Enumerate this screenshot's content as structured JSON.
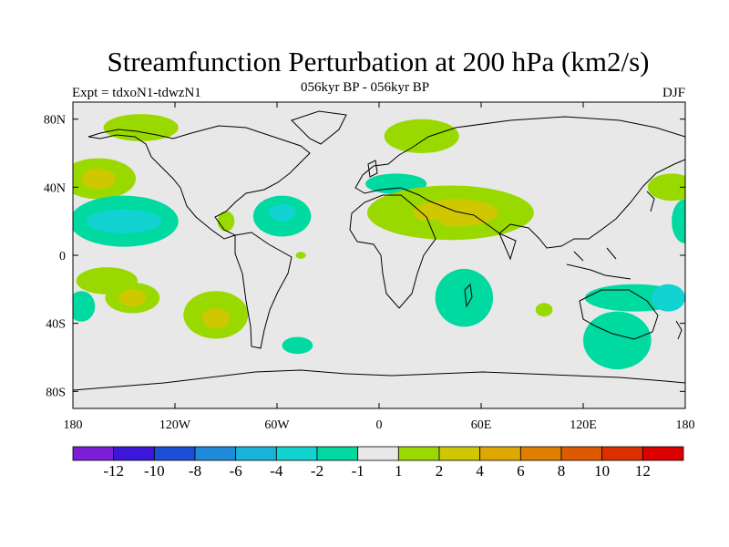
{
  "header": {
    "title": "Streamfunction Perturbation at 200 hPa (km2/s)",
    "experiment": "Expt = tdxoN1-tdwzN1",
    "period": "056kyr BP - 056kyr BP",
    "season": "DJF"
  },
  "chart_data": {
    "type": "contour_map",
    "projection": "cylindrical equidistant",
    "variable": "Streamfunction Perturbation",
    "level": "200 hPa",
    "units": "km2/s",
    "lon_range": [
      -180,
      180
    ],
    "lat_range": [
      -90,
      90
    ],
    "x_ticks": [
      {
        "value": -180,
        "label": "180"
      },
      {
        "value": -120,
        "label": "120W"
      },
      {
        "value": -60,
        "label": "60W"
      },
      {
        "value": 0,
        "label": "0"
      },
      {
        "value": 60,
        "label": "60E"
      },
      {
        "value": 120,
        "label": "120E"
      },
      {
        "value": 180,
        "label": "180"
      }
    ],
    "y_ticks": [
      {
        "value": 80,
        "label": "80N"
      },
      {
        "value": 40,
        "label": "40N"
      },
      {
        "value": 0,
        "label": "0"
      },
      {
        "value": -40,
        "label": "40S"
      },
      {
        "value": -80,
        "label": "80S"
      }
    ],
    "colorbar": {
      "colors": [
        "#7d1fd9",
        "#3d17d9",
        "#1a4fd6",
        "#1e8ad8",
        "#18b4d8",
        "#12d2d2",
        "#00d9a0",
        "#e8e8e8",
        "#9ad900",
        "#cfc800",
        "#dfa800",
        "#e07e00",
        "#dd5a00",
        "#dc3000",
        "#dd0000"
      ],
      "labels": [
        "-12",
        "-10",
        "-8",
        "-6",
        "-4",
        "-2",
        "-1",
        "1",
        "2",
        "4",
        "6",
        "8",
        "10",
        "12"
      ]
    },
    "anomalies": [
      {
        "lon": -140,
        "lat": 75,
        "rx": 22,
        "ry": 8,
        "level": 2
      },
      {
        "lon": -165,
        "lat": 45,
        "rx": 22,
        "ry": 12,
        "level": 2
      },
      {
        "lon": -165,
        "lat": 45,
        "rx": 10,
        "ry": 6,
        "level": 4
      },
      {
        "lon": -150,
        "lat": 20,
        "rx": 32,
        "ry": 15,
        "level": -1
      },
      {
        "lon": -150,
        "lat": 20,
        "rx": 22,
        "ry": 7,
        "level": -2
      },
      {
        "lon": -160,
        "lat": -15,
        "rx": 18,
        "ry": 8,
        "level": 2
      },
      {
        "lon": -145,
        "lat": -25,
        "rx": 16,
        "ry": 9,
        "level": 2
      },
      {
        "lon": -145,
        "lat": -25,
        "rx": 8,
        "ry": 5,
        "level": 4
      },
      {
        "lon": -175,
        "lat": -30,
        "rx": 8,
        "ry": 9,
        "level": -1
      },
      {
        "lon": -96,
        "lat": -35,
        "rx": 19,
        "ry": 14,
        "level": 2
      },
      {
        "lon": -96,
        "lat": -37,
        "rx": 8,
        "ry": 6,
        "level": 4
      },
      {
        "lon": -57,
        "lat": 23,
        "rx": 17,
        "ry": 12,
        "level": -1
      },
      {
        "lon": -57,
        "lat": 25,
        "rx": 8,
        "ry": 5,
        "level": -2
      },
      {
        "lon": -90,
        "lat": 20,
        "rx": 5,
        "ry": 6,
        "level": 2
      },
      {
        "lon": -48,
        "lat": -53,
        "rx": 9,
        "ry": 5,
        "level": -1
      },
      {
        "lon": -46,
        "lat": 0,
        "rx": 3,
        "ry": 2,
        "level": 2
      },
      {
        "lon": 25,
        "lat": 70,
        "rx": 22,
        "ry": 10,
        "level": 2
      },
      {
        "lon": 10,
        "lat": 42,
        "rx": 18,
        "ry": 6,
        "level": -1
      },
      {
        "lon": 42,
        "lat": 25,
        "rx": 49,
        "ry": 16,
        "level": 2
      },
      {
        "lon": 45,
        "lat": 25,
        "rx": 25,
        "ry": 8,
        "level": 4
      },
      {
        "lon": 30,
        "lat": 17,
        "rx": 8,
        "ry": 4,
        "level": 2
      },
      {
        "lon": 50,
        "lat": -25,
        "rx": 17,
        "ry": 17,
        "level": -1
      },
      {
        "lon": 97,
        "lat": -32,
        "rx": 5,
        "ry": 4,
        "level": 2
      },
      {
        "lon": 150,
        "lat": -25,
        "rx": 29,
        "ry": 8,
        "level": -1
      },
      {
        "lon": 140,
        "lat": -50,
        "rx": 20,
        "ry": 17,
        "level": -1
      },
      {
        "lon": 170,
        "lat": -25,
        "rx": 10,
        "ry": 8,
        "level": -2
      },
      {
        "lon": 172,
        "lat": 40,
        "rx": 14,
        "ry": 8,
        "level": 2
      },
      {
        "lon": 180,
        "lat": 20,
        "rx": 8,
        "ry": 13,
        "level": -1
      }
    ]
  }
}
